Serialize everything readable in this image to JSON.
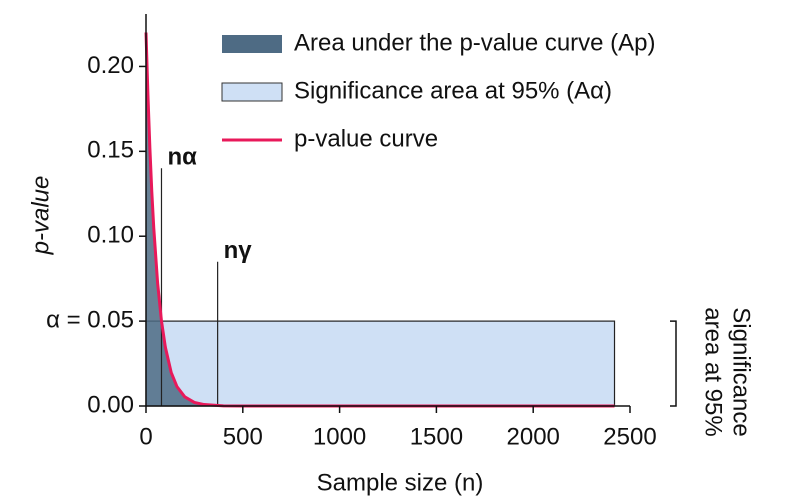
{
  "chart_data": {
    "type": "area",
    "ylabel": "p-value",
    "xlabel": "Sample size (n)",
    "xlim": [
      0,
      2500
    ],
    "ylim": [
      0,
      0.225
    ],
    "xticks": [
      0,
      500,
      1000,
      1500,
      2000,
      2500
    ],
    "yticks": [
      {
        "value": 0,
        "label": "0.00"
      },
      {
        "value": 0.05,
        "label": "α = 0.05"
      },
      {
        "value": 0.1,
        "label": "0.10"
      },
      {
        "value": 0.15,
        "label": "0.15"
      },
      {
        "value": 0.2,
        "label": "0.20"
      }
    ],
    "x": [
      0,
      10,
      20,
      30,
      40,
      60,
      80,
      100,
      130,
      160,
      200,
      250,
      300,
      400,
      500,
      700,
      1000,
      1500,
      2000,
      2420
    ],
    "series": [
      {
        "name": "Area under the p-value curve (Ap)",
        "color": "#4e6b84",
        "values": [
          0.22,
          0.183,
          0.152,
          0.126,
          0.105,
          0.0724,
          0.05,
          0.0346,
          0.0198,
          0.0114,
          0.0054,
          0.0021,
          0.00085,
          0.0001,
          0,
          0,
          0,
          0,
          0,
          0
        ]
      },
      {
        "name": "Significance area at 95% (Aα)",
        "color": "#cfe0f5",
        "x_range": [
          0,
          2420
        ],
        "y_range": [
          0,
          0.05
        ]
      },
      {
        "name": "p-value curve",
        "color": "#e8195a",
        "values": [
          0.22,
          0.183,
          0.152,
          0.126,
          0.105,
          0.0724,
          0.05,
          0.0346,
          0.0198,
          0.0114,
          0.0054,
          0.0021,
          0.00085,
          0.0001,
          0,
          0,
          0,
          0,
          0,
          0
        ]
      }
    ],
    "annotations": [
      {
        "label": "nα",
        "x": 80,
        "y": 0.14
      },
      {
        "label": "nγ",
        "x": 370,
        "y": 0.085
      }
    ],
    "bracket": {
      "lines": [
        "Significance",
        "area at 95%"
      ],
      "y_range": [
        0,
        0.05
      ]
    }
  }
}
